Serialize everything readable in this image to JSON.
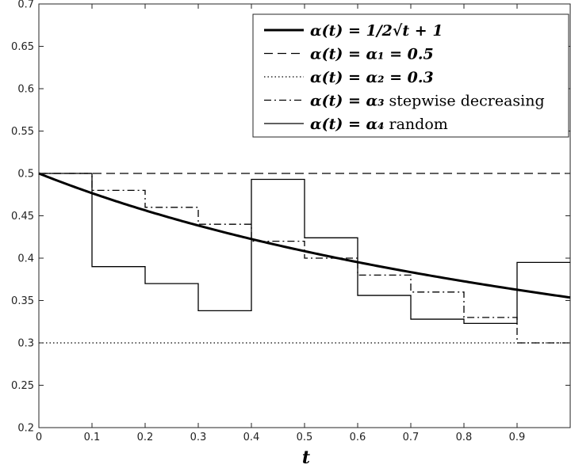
{
  "chart_data": {
    "type": "line",
    "xlabel": "t",
    "ylabel": "",
    "xlim": [
      0,
      1
    ],
    "ylim": [
      0.2,
      0.7
    ],
    "x_ticks": [
      "0",
      "0.1",
      "0.2",
      "0.3",
      "0.4",
      "0.5",
      "0.6",
      "0.7",
      "0.8",
      "0.9"
    ],
    "y_ticks": [
      "0.2",
      "0.25",
      "0.3",
      "0.35",
      "0.4",
      "0.45",
      "0.5",
      "0.55",
      "0.6",
      "0.65",
      "0.7"
    ],
    "grid": false,
    "legend_position": "top-right",
    "series": [
      {
        "name": "α(t) = 1/2√t + 1",
        "style": "solid-thick",
        "function": "1/(2*sqrt(t+1))",
        "x": [
          0,
          0.1,
          0.2,
          0.3,
          0.4,
          0.5,
          0.6,
          0.7,
          0.8,
          0.9,
          1.0
        ],
        "y": [
          0.5,
          0.4767,
          0.4564,
          0.4385,
          0.4226,
          0.4082,
          0.3953,
          0.3835,
          0.3727,
          0.3627,
          0.3536
        ]
      },
      {
        "name": "α(t) = α₁ = 0.5",
        "style": "dashed",
        "x": [
          0,
          1
        ],
        "y": [
          0.5,
          0.5
        ]
      },
      {
        "name": "α(t) = α₂ = 0.3",
        "style": "dotted",
        "x": [
          0,
          1
        ],
        "y": [
          0.3,
          0.3
        ]
      },
      {
        "name": "α(t) = α₃ stepwise decreasing",
        "style": "dashdot",
        "step": true,
        "x": [
          0,
          0.1,
          0.2,
          0.3,
          0.4,
          0.5,
          0.6,
          0.7,
          0.8,
          0.9,
          1.0
        ],
        "y": [
          0.5,
          0.48,
          0.46,
          0.44,
          0.42,
          0.4,
          0.38,
          0.36,
          0.33,
          0.3,
          0.3
        ]
      },
      {
        "name": "α(t) = α₄ random",
        "style": "solid-thin",
        "step": true,
        "x": [
          0,
          0.1,
          0.2,
          0.3,
          0.4,
          0.5,
          0.6,
          0.7,
          0.8,
          0.9,
          1.0
        ],
        "y": [
          0.5,
          0.39,
          0.37,
          0.338,
          0.493,
          0.424,
          0.356,
          0.328,
          0.323,
          0.395,
          0.395
        ]
      }
    ],
    "legend": {
      "entries": [
        {
          "math": "α(t) = 1/2√t + 1",
          "word": ""
        },
        {
          "math": "α(t) = α₁ = 0.5",
          "word": ""
        },
        {
          "math": "α(t) = α₂ = 0.3",
          "word": ""
        },
        {
          "math": "α(t) = α₃",
          "word": "stepwise decreasing"
        },
        {
          "math": "α(t) = α₄",
          "word": "random"
        }
      ]
    }
  }
}
